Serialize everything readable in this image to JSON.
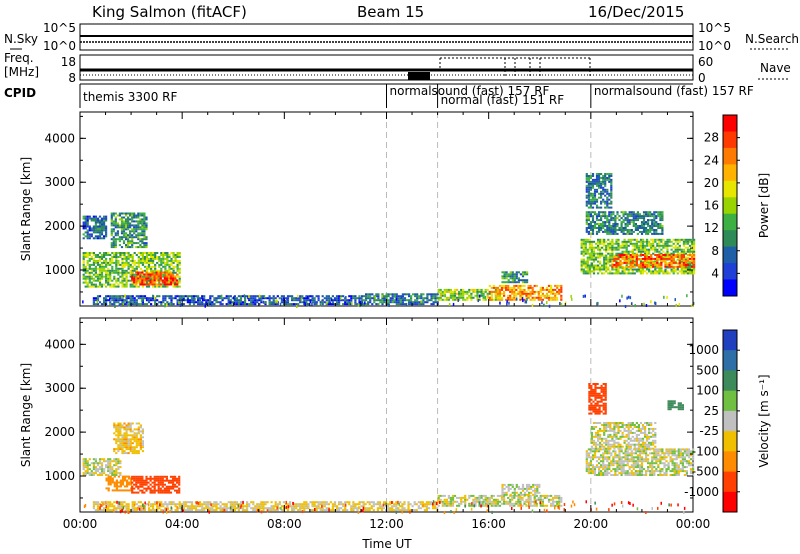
{
  "header": {
    "title": "King Salmon (fitACF)",
    "beam": "Beam 15",
    "date": "16/Dec/2015"
  },
  "top_panels": {
    "nsky_label": "N.Sky",
    "nsearch_label": "N.Search",
    "nsky_ticks": [
      "10^5",
      "10^0"
    ],
    "nsearch_ticks": [
      "10^5",
      "10^0"
    ],
    "freq_label_1": "Freq.",
    "freq_label_2": "[MHz]",
    "freq_ticks": [
      "18",
      "8"
    ],
    "nave_label": "Nave",
    "nave_ticks": [
      "60",
      "0"
    ],
    "cpid_label": "CPID"
  },
  "cpid_segments": [
    {
      "name": "themis 3300 RF",
      "start_h": 0.0
    },
    {
      "name": "normalsound (fast) 157 RF",
      "start_h": 12.0
    },
    {
      "name": "normal (fast) 151 RF",
      "start_h": 14.0
    },
    {
      "name": "normalsound (fast) 157 RF",
      "start_h": 20.0
    }
  ],
  "power_colorbar": {
    "label": "Power [dB]",
    "ticks": [
      "28",
      "24",
      "20",
      "16",
      "12",
      "8",
      "4"
    ],
    "colors": [
      "#ff0000",
      "#ff3a00",
      "#ff7a00",
      "#ffb300",
      "#e6e600",
      "#9ad400",
      "#3cb043",
      "#2e8b57",
      "#1e5fa8",
      "#1f3fd6",
      "#0000ff"
    ]
  },
  "velocity_colorbar": {
    "label": "Velocity [m s⁻¹]",
    "ticks": [
      "1000",
      "500",
      "100",
      "25",
      "-25",
      "-100",
      "-500",
      "-1000"
    ],
    "colors": [
      "#2040c0",
      "#2f6fa8",
      "#3d8a5a",
      "#6fc040",
      "#c0c0c0",
      "#f0c000",
      "#ff8c00",
      "#ff4000",
      "#ff0000"
    ]
  },
  "chart_data": [
    {
      "type": "heatmap",
      "title": "Power",
      "xlabel": "Time UT",
      "ylabel": "Slant Range [km]",
      "x_ticks": [
        "00:00",
        "04:00",
        "08:00",
        "12:00",
        "16:00",
        "20:00",
        "00:00"
      ],
      "y_ticks": [
        "1000",
        "2000",
        "3000",
        "4000"
      ],
      "xlim": [
        0,
        24
      ],
      "ylim": [
        180,
        4600
      ],
      "zlabel": "Power [dB]",
      "zlim": [
        0,
        30
      ],
      "regions": [
        {
          "t0": 0.1,
          "t1": 3.9,
          "r0": 600,
          "r1": 1400,
          "value": 14
        },
        {
          "t0": 2.0,
          "t1": 3.8,
          "r0": 650,
          "r1": 950,
          "value": 26
        },
        {
          "t0": 1.2,
          "t1": 2.6,
          "r0": 1500,
          "r1": 2300,
          "value": 10
        },
        {
          "t0": 0.1,
          "t1": 1.0,
          "r0": 1700,
          "r1": 2200,
          "value": 7
        },
        {
          "t0": 0.5,
          "t1": 11.0,
          "r0": 200,
          "r1": 400,
          "value": 6
        },
        {
          "t0": 11.0,
          "t1": 14.0,
          "r0": 200,
          "r1": 450,
          "value": 8
        },
        {
          "t0": 14.0,
          "t1": 16.5,
          "r0": 300,
          "r1": 550,
          "value": 15
        },
        {
          "t0": 16.0,
          "t1": 18.8,
          "r0": 300,
          "r1": 650,
          "value": 22
        },
        {
          "t0": 16.5,
          "t1": 17.5,
          "r0": 700,
          "r1": 950,
          "value": 10
        },
        {
          "t0": 19.6,
          "t1": 24.0,
          "r0": 900,
          "r1": 1700,
          "value": 14
        },
        {
          "t0": 20.8,
          "t1": 24.0,
          "r0": 1050,
          "r1": 1350,
          "value": 24
        },
        {
          "t0": 19.8,
          "t1": 22.8,
          "r0": 1800,
          "r1": 2300,
          "value": 9
        },
        {
          "t0": 19.8,
          "t1": 20.8,
          "r0": 2400,
          "r1": 3200,
          "value": 8
        }
      ]
    },
    {
      "type": "heatmap",
      "title": "Velocity",
      "xlabel": "Time UT",
      "ylabel": "Slant Range [km]",
      "x_ticks": [
        "00:00",
        "04:00",
        "08:00",
        "12:00",
        "16:00",
        "20:00",
        "00:00"
      ],
      "y_ticks": [
        "1000",
        "2000",
        "3000",
        "4000"
      ],
      "xlim": [
        0,
        24
      ],
      "ylim": [
        180,
        4600
      ],
      "zlabel": "Velocity [m s⁻¹]",
      "zlim": [
        -1000,
        1000
      ],
      "regions": [
        {
          "t0": 0.1,
          "t1": 1.6,
          "r0": 1000,
          "r1": 1400,
          "value": 0
        },
        {
          "t0": 1.0,
          "t1": 2.0,
          "r0": 650,
          "r1": 1000,
          "value": -200
        },
        {
          "t0": 2.0,
          "t1": 3.9,
          "r0": 600,
          "r1": 1000,
          "value": -450
        },
        {
          "t0": 1.3,
          "t1": 2.5,
          "r0": 1500,
          "r1": 2200,
          "value": -60
        },
        {
          "t0": 0.5,
          "t1": 14.0,
          "r0": 200,
          "r1": 400,
          "value": -40
        },
        {
          "t0": 14.0,
          "t1": 18.8,
          "r0": 300,
          "r1": 550,
          "value": 0
        },
        {
          "t0": 16.5,
          "t1": 18.0,
          "r0": 550,
          "r1": 800,
          "value": 0
        },
        {
          "t0": 19.8,
          "t1": 24.0,
          "r0": 1000,
          "r1": 1600,
          "value": 0
        },
        {
          "t0": 20.0,
          "t1": 22.5,
          "r0": 1600,
          "r1": 2200,
          "value": 0
        },
        {
          "t0": 19.9,
          "t1": 20.6,
          "r0": 2400,
          "r1": 3100,
          "value": -400
        },
        {
          "t0": 23.0,
          "t1": 23.6,
          "r0": 2500,
          "r1": 2700,
          "value": 120
        }
      ]
    }
  ]
}
